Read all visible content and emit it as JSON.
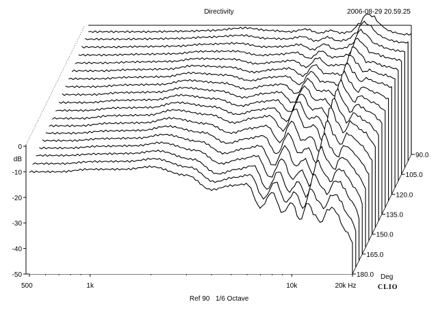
{
  "header": {
    "title": "Directivity",
    "timestamp": "2006-08-29 20.59.25"
  },
  "footer": {
    "reference": "Ref 90",
    "smoothing": "1/6 Octave",
    "brand": "CLIO"
  },
  "chart_data": {
    "type": "line",
    "subtype": "waterfall-3d",
    "title": "Directivity",
    "xlabel": "Hz",
    "ylabel": "dB",
    "zlabel": "Deg",
    "x_scale": "log",
    "xlim": [
      500,
      20000
    ],
    "ylim": [
      -50,
      0
    ],
    "x_ticks": [
      {
        "value": 500,
        "label": "500"
      },
      {
        "value": 1000,
        "label": "1k"
      },
      {
        "value": 10000,
        "label": "10k"
      },
      {
        "value": 20000,
        "label": "20k Hz"
      }
    ],
    "y_ticks": [
      {
        "value": 0,
        "label": "0"
      },
      {
        "value": -10,
        "label": "-10"
      },
      {
        "value": -20,
        "label": "-20"
      },
      {
        "value": -30,
        "label": "-30"
      },
      {
        "value": -40,
        "label": "-40"
      },
      {
        "value": -50,
        "label": "-50"
      }
    ],
    "z_ticks": [
      {
        "value": 90,
        "label": "90.0"
      },
      {
        "value": 105,
        "label": "105.0"
      },
      {
        "value": 120,
        "label": "120.0"
      },
      {
        "value": 135,
        "label": "135.0"
      },
      {
        "value": 150,
        "label": "150.0"
      },
      {
        "value": 165,
        "label": "165.0"
      },
      {
        "value": 180,
        "label": "180.0"
      }
    ],
    "x": [
      500,
      700,
      1000,
      1500,
      2000,
      3000,
      4000,
      5000,
      6000,
      7000,
      8000,
      9000,
      10000,
      11000,
      12000,
      13000,
      14000,
      15000,
      16000,
      17000,
      18000,
      19000,
      20000
    ],
    "series": [
      {
        "angle": 90,
        "values": [
          -2,
          -2,
          -2,
          -1.8,
          -1.5,
          -0.5,
          -1.5,
          -2,
          -1,
          -2.5,
          -1.5,
          -2.5,
          -2,
          1,
          5,
          4,
          1,
          -1,
          -2,
          -2.5,
          -3,
          -3,
          -3
        ]
      },
      {
        "angle": 95,
        "values": [
          -2.3,
          -2.3,
          -2.2,
          -2,
          -1.5,
          -0.8,
          -2,
          -2.2,
          -1.3,
          -3,
          -1.5,
          -3,
          -2.5,
          0,
          4.5,
          3,
          0,
          -1.5,
          -2.5,
          -3,
          -3.5,
          -3.5,
          -3.7
        ]
      },
      {
        "angle": 100,
        "values": [
          -2.8,
          -2.8,
          -2.6,
          -2.4,
          -1.7,
          -1.3,
          -2.7,
          -2.6,
          -1.8,
          -3.8,
          -1.6,
          -3.6,
          -3.2,
          -1.5,
          3.9,
          1.9,
          -1.2,
          -2.1,
          -3.1,
          -3.7,
          -4.1,
          -4.3,
          -4.6
        ]
      },
      {
        "angle": 105,
        "values": [
          -3.3,
          -3.3,
          -3,
          -2.8,
          -1.9,
          -1.8,
          -3.4,
          -3,
          -2.3,
          -4.6,
          -1.7,
          -4.2,
          -3.9,
          -3,
          3.3,
          0.8,
          -2.4,
          -2.7,
          -3.7,
          -4.4,
          -4.7,
          -5.1,
          -5.5
        ]
      },
      {
        "angle": 110,
        "values": [
          -3.8,
          -3.8,
          -3.4,
          -3.2,
          -2.1,
          -2.3,
          -4.1,
          -3.4,
          -2.8,
          -5.4,
          -1.8,
          -4.8,
          -4.6,
          -4.5,
          2.7,
          -0.3,
          -3.6,
          -3.3,
          -4.3,
          -5.1,
          -5.3,
          -5.9,
          -6.4
        ]
      },
      {
        "angle": 115,
        "values": [
          -4.3,
          -4.3,
          -3.8,
          -3.6,
          -2.3,
          -2.8,
          -4.8,
          -3.8,
          -3.3,
          -6.2,
          -1.9,
          -5.4,
          -5.3,
          -6,
          2.1,
          -1.4,
          -4.8,
          -3.9,
          -4.9,
          -5.8,
          -5.9,
          -6.7,
          -7.3
        ]
      },
      {
        "angle": 120,
        "values": [
          -4.8,
          -4.8,
          -4.2,
          -4,
          -2.5,
          -3.3,
          -5.5,
          -4.2,
          -3.8,
          -7,
          -2,
          -6,
          -6,
          -7.5,
          1.5,
          -2.5,
          -6,
          -4.5,
          -5.5,
          -6.5,
          -6.5,
          -7.5,
          -8.2
        ]
      },
      {
        "angle": 125,
        "values": [
          -5.3,
          -5.3,
          -4.6,
          -4.4,
          -2.8,
          -3.8,
          -6.2,
          -4.8,
          -4.3,
          -8,
          -2.3,
          -7,
          -6.8,
          -9.3,
          0.7,
          -3.8,
          -7.4,
          -5.3,
          -6.4,
          -7.6,
          -7.8,
          -9.2,
          -10.2
        ]
      },
      {
        "angle": 130,
        "values": [
          -5.8,
          -5.8,
          -5,
          -4.8,
          -3.1,
          -4.3,
          -6.9,
          -5.4,
          -4.8,
          -9,
          -2.6,
          -8,
          -7.6,
          -11.1,
          -0.1,
          -5.1,
          -8.8,
          -6.1,
          -7.3,
          -8.7,
          -9.1,
          -10.9,
          -12.2
        ]
      },
      {
        "angle": 135,
        "values": [
          -6.3,
          -6.3,
          -5.4,
          -5.2,
          -3.4,
          -4.8,
          -7.6,
          -6,
          -5.3,
          -10,
          -2.9,
          -9,
          -8.4,
          -12.9,
          -0.9,
          -6.4,
          -10.2,
          -6.9,
          -8.2,
          -9.8,
          -10.4,
          -12.6,
          -14.2
        ]
      },
      {
        "angle": 140,
        "values": [
          -6.8,
          -6.8,
          -5.8,
          -5.6,
          -3.7,
          -5.3,
          -8.3,
          -6.6,
          -5.8,
          -11,
          -3.2,
          -10,
          -9.2,
          -14.7,
          -1.7,
          -7.7,
          -11.6,
          -7.7,
          -9.1,
          -10.9,
          -11.7,
          -14.3,
          -16.2
        ]
      },
      {
        "angle": 145,
        "values": [
          -7.3,
          -7.3,
          -6.2,
          -6,
          -4,
          -5.8,
          -9,
          -7.2,
          -6.3,
          -12,
          -3.5,
          -11,
          -10,
          -16.5,
          -2.5,
          -9,
          -13,
          -8.5,
          -10,
          -12,
          -13,
          -16,
          -18.2
        ]
      },
      {
        "angle": 150,
        "values": [
          -7.6,
          -7.6,
          -6.6,
          -6.4,
          -4.6,
          -6.7,
          -10.4,
          -8.6,
          -7.6,
          -14,
          -5.8,
          -13.4,
          -11.8,
          -18.2,
          -5.2,
          -11.4,
          -15.2,
          -10.6,
          -11.8,
          -14,
          -15.6,
          -18.4,
          -21.2
        ]
      },
      {
        "angle": 155,
        "values": [
          -7.9,
          -7.9,
          -7,
          -6.8,
          -5.2,
          -7.6,
          -11.8,
          -10,
          -8.9,
          -16,
          -8.1,
          -15.8,
          -13.6,
          -19.9,
          -7.9,
          -13.8,
          -17.4,
          -12.7,
          -13.6,
          -16,
          -18.2,
          -20.8,
          -24.2
        ]
      },
      {
        "angle": 160,
        "values": [
          -8.2,
          -8.2,
          -7.4,
          -7.2,
          -5.8,
          -8.5,
          -13.2,
          -11.4,
          -10.2,
          -18,
          -10.4,
          -18.2,
          -15.4,
          -21.6,
          -10.6,
          -16.2,
          -19.6,
          -14.8,
          -15.4,
          -18,
          -20.8,
          -23.2,
          -27.2
        ]
      },
      {
        "angle": 165,
        "values": [
          -8.5,
          -8.5,
          -7.8,
          -7.6,
          -6.4,
          -9.4,
          -14.6,
          -12.8,
          -11.5,
          -20,
          -12.7,
          -20.6,
          -17.2,
          -23.3,
          -13.3,
          -18.6,
          -21.8,
          -16.9,
          -17.2,
          -20,
          -23.4,
          -25.6,
          -30.2
        ]
      },
      {
        "angle": 170,
        "values": [
          -8.8,
          -8.8,
          -8.2,
          -8,
          -7,
          -10.3,
          -16,
          -14.2,
          -12.8,
          -22,
          -15,
          -23,
          -19,
          -25,
          -16,
          -21,
          -24,
          -19,
          -19,
          -22,
          -26,
          -28,
          -33.2
        ]
      },
      {
        "angle": 175,
        "values": [
          -9.4,
          -9.4,
          -8.6,
          -8.5,
          -7.5,
          -10.8,
          -16.5,
          -14.8,
          -13.8,
          -23,
          -16.5,
          -24.5,
          -20.5,
          -27,
          -19,
          -24,
          -27,
          -22,
          -21.5,
          -24.5,
          -29,
          -31,
          -35.5
        ]
      },
      {
        "angle": 180,
        "values": [
          -10,
          -10,
          -9,
          -9,
          -8,
          -11.3,
          -17,
          -15.4,
          -14.8,
          -24,
          -18,
          -26,
          -22,
          -29,
          -22,
          -27,
          -30,
          -25,
          -24,
          -27,
          -32,
          -34,
          -37.8
        ]
      }
    ],
    "grid": false,
    "legend": "none"
  }
}
